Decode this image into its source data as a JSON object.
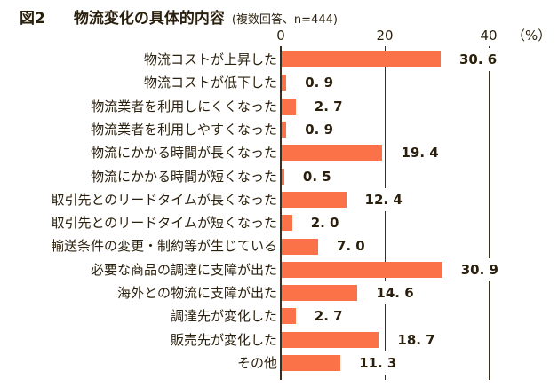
{
  "title": {
    "figure_label": "図2",
    "text": "物流変化の具体的内容",
    "note": "(複数回答、n=444)"
  },
  "axis": {
    "ticks": [
      "0",
      "20",
      "40"
    ],
    "unit_label": "（%）"
  },
  "colors": {
    "bar": "#fb7249",
    "line": "#3a2f1e",
    "text": "#2a1f0c",
    "background": "#ffffff"
  },
  "chart_data": {
    "type": "bar",
    "orientation": "horizontal",
    "title": "図2　物流変化の具体的内容(複数回答、n=444)",
    "sample_note": "複数回答、n=444",
    "xlabel": "（%）",
    "xlim": [
      0,
      40
    ],
    "gridlines_at": [
      0,
      20,
      40
    ],
    "legend": "none",
    "categories": [
      "物流コストが上昇した",
      "物流コストが低下した",
      "物流業者を利用しにくくなった",
      "物流業者を利用しやすくなった",
      "物流にかかる時間が長くなった",
      "物流にかかる時間が短くなった",
      "取引先とのリードタイムが長くなった",
      "取引先とのリードタイムが短くなった",
      "輸送条件の変更・制約等が生じている",
      "必要な商品の調達に支障が出た",
      "海外との物流に支障が出た",
      "調達先が変化した",
      "販売先が変化した",
      "その他"
    ],
    "values": [
      30.6,
      0.9,
      2.7,
      0.9,
      19.4,
      0.5,
      12.4,
      2.0,
      7.0,
      30.9,
      14.6,
      2.7,
      18.7,
      11.3
    ],
    "value_labels": [
      "30. 6",
      "0. 9",
      "2. 7",
      "0. 9",
      "19. 4",
      "0. 5",
      "12. 4",
      "2. 0",
      "7. 0",
      "30. 9",
      "14. 6",
      "2. 7",
      "18. 7",
      "11. 3"
    ]
  }
}
